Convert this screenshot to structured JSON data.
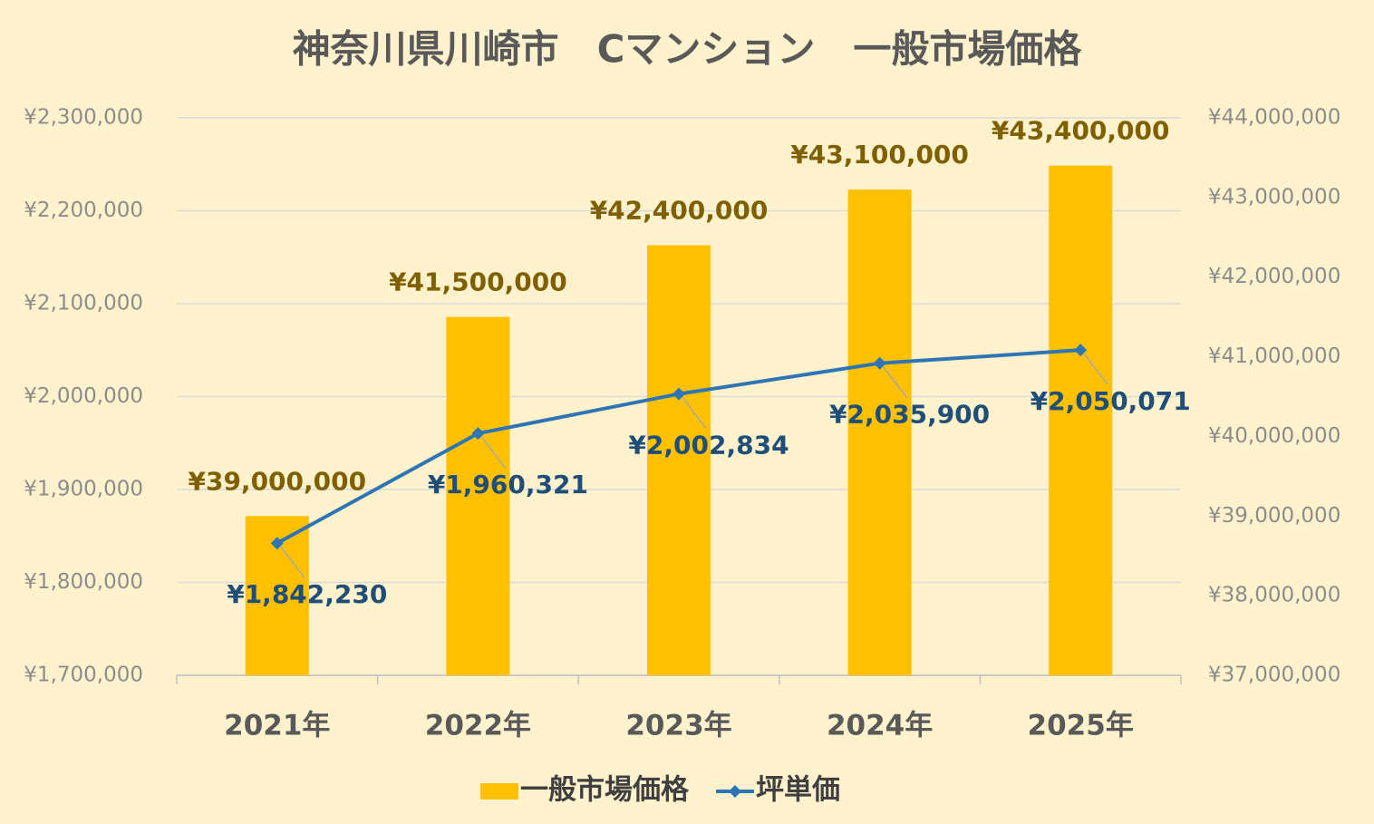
{
  "chart_data": {
    "type": "combo",
    "title": "神奈川県川崎市　Cマンション　一般市場価格",
    "categories": [
      "2021年",
      "2022年",
      "2023年",
      "2024年",
      "2025年"
    ],
    "series": [
      {
        "name": "一般市場価格",
        "type": "bar",
        "axis": "y2",
        "color": "#ffc000",
        "values": [
          39000000,
          41500000,
          42400000,
          43100000,
          43400000
        ],
        "value_labels": [
          "¥39,000,000",
          "¥41,500,000",
          "¥42,400,000",
          "¥43,100,000",
          "¥43,400,000"
        ]
      },
      {
        "name": "坪単価",
        "type": "line",
        "color": "#2e75b6",
        "values": [
          1842230,
          1960321,
          2002834,
          2035900,
          2050071
        ],
        "value_labels": [
          "¥1,842,230",
          "¥1,960,321",
          "¥2,002,834",
          "¥2,035,900",
          "¥2,050,071"
        ]
      }
    ],
    "ylim": [
      1700000,
      2300000
    ],
    "yticks": [
      {
        "value": 1700000,
        "label": "¥1,700,000"
      },
      {
        "value": 1800000,
        "label": "¥1,800,000"
      },
      {
        "value": 1900000,
        "label": "¥1,900,000"
      },
      {
        "value": 2000000,
        "label": "¥2,000,000"
      },
      {
        "value": 2100000,
        "label": "¥2,100,000"
      },
      {
        "value": 2200000,
        "label": "¥2,200,000"
      },
      {
        "value": 2300000,
        "label": "¥2,300,000"
      }
    ],
    "y2lim": [
      37000000,
      44000000
    ],
    "y2ticks": [
      {
        "value": 37000000,
        "label": "¥37,000,000"
      },
      {
        "value": 38000000,
        "label": "¥38,000,000"
      },
      {
        "value": 39000000,
        "label": "¥39,000,000"
      },
      {
        "value": 40000000,
        "label": "¥40,000,000"
      },
      {
        "value": 41000000,
        "label": "¥41,000,000"
      },
      {
        "value": 42000000,
        "label": "¥42,000,000"
      },
      {
        "value": 43000000,
        "label": "¥43,000,000"
      },
      {
        "value": 44000000,
        "label": "¥44,000,000"
      }
    ],
    "grid": true,
    "legend": "bottom"
  }
}
